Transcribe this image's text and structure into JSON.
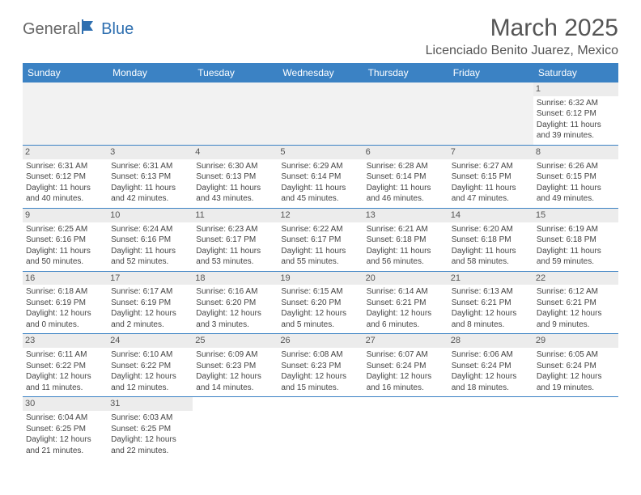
{
  "logo": {
    "text1": "General",
    "text2": "Blue"
  },
  "title": "March 2025",
  "location": "Licenciado Benito Juarez, Mexico",
  "columns": [
    "Sunday",
    "Monday",
    "Tuesday",
    "Wednesday",
    "Thursday",
    "Friday",
    "Saturday"
  ],
  "colors": {
    "header_bg": "#3b82c4",
    "header_text": "#ffffff",
    "daynum_bg": "#ececec",
    "border": "#3b82c4"
  },
  "weeks": [
    [
      null,
      null,
      null,
      null,
      null,
      null,
      {
        "n": "1",
        "sr": "6:32 AM",
        "ss": "6:12 PM",
        "dl": "11 hours and 39 minutes."
      }
    ],
    [
      {
        "n": "2",
        "sr": "6:31 AM",
        "ss": "6:12 PM",
        "dl": "11 hours and 40 minutes."
      },
      {
        "n": "3",
        "sr": "6:31 AM",
        "ss": "6:13 PM",
        "dl": "11 hours and 42 minutes."
      },
      {
        "n": "4",
        "sr": "6:30 AM",
        "ss": "6:13 PM",
        "dl": "11 hours and 43 minutes."
      },
      {
        "n": "5",
        "sr": "6:29 AM",
        "ss": "6:14 PM",
        "dl": "11 hours and 45 minutes."
      },
      {
        "n": "6",
        "sr": "6:28 AM",
        "ss": "6:14 PM",
        "dl": "11 hours and 46 minutes."
      },
      {
        "n": "7",
        "sr": "6:27 AM",
        "ss": "6:15 PM",
        "dl": "11 hours and 47 minutes."
      },
      {
        "n": "8",
        "sr": "6:26 AM",
        "ss": "6:15 PM",
        "dl": "11 hours and 49 minutes."
      }
    ],
    [
      {
        "n": "9",
        "sr": "6:25 AM",
        "ss": "6:16 PM",
        "dl": "11 hours and 50 minutes."
      },
      {
        "n": "10",
        "sr": "6:24 AM",
        "ss": "6:16 PM",
        "dl": "11 hours and 52 minutes."
      },
      {
        "n": "11",
        "sr": "6:23 AM",
        "ss": "6:17 PM",
        "dl": "11 hours and 53 minutes."
      },
      {
        "n": "12",
        "sr": "6:22 AM",
        "ss": "6:17 PM",
        "dl": "11 hours and 55 minutes."
      },
      {
        "n": "13",
        "sr": "6:21 AM",
        "ss": "6:18 PM",
        "dl": "11 hours and 56 minutes."
      },
      {
        "n": "14",
        "sr": "6:20 AM",
        "ss": "6:18 PM",
        "dl": "11 hours and 58 minutes."
      },
      {
        "n": "15",
        "sr": "6:19 AM",
        "ss": "6:18 PM",
        "dl": "11 hours and 59 minutes."
      }
    ],
    [
      {
        "n": "16",
        "sr": "6:18 AM",
        "ss": "6:19 PM",
        "dl": "12 hours and 0 minutes."
      },
      {
        "n": "17",
        "sr": "6:17 AM",
        "ss": "6:19 PM",
        "dl": "12 hours and 2 minutes."
      },
      {
        "n": "18",
        "sr": "6:16 AM",
        "ss": "6:20 PM",
        "dl": "12 hours and 3 minutes."
      },
      {
        "n": "19",
        "sr": "6:15 AM",
        "ss": "6:20 PM",
        "dl": "12 hours and 5 minutes."
      },
      {
        "n": "20",
        "sr": "6:14 AM",
        "ss": "6:21 PM",
        "dl": "12 hours and 6 minutes."
      },
      {
        "n": "21",
        "sr": "6:13 AM",
        "ss": "6:21 PM",
        "dl": "12 hours and 8 minutes."
      },
      {
        "n": "22",
        "sr": "6:12 AM",
        "ss": "6:21 PM",
        "dl": "12 hours and 9 minutes."
      }
    ],
    [
      {
        "n": "23",
        "sr": "6:11 AM",
        "ss": "6:22 PM",
        "dl": "12 hours and 11 minutes."
      },
      {
        "n": "24",
        "sr": "6:10 AM",
        "ss": "6:22 PM",
        "dl": "12 hours and 12 minutes."
      },
      {
        "n": "25",
        "sr": "6:09 AM",
        "ss": "6:23 PM",
        "dl": "12 hours and 14 minutes."
      },
      {
        "n": "26",
        "sr": "6:08 AM",
        "ss": "6:23 PM",
        "dl": "12 hours and 15 minutes."
      },
      {
        "n": "27",
        "sr": "6:07 AM",
        "ss": "6:24 PM",
        "dl": "12 hours and 16 minutes."
      },
      {
        "n": "28",
        "sr": "6:06 AM",
        "ss": "6:24 PM",
        "dl": "12 hours and 18 minutes."
      },
      {
        "n": "29",
        "sr": "6:05 AM",
        "ss": "6:24 PM",
        "dl": "12 hours and 19 minutes."
      }
    ],
    [
      {
        "n": "30",
        "sr": "6:04 AM",
        "ss": "6:25 PM",
        "dl": "12 hours and 21 minutes."
      },
      {
        "n": "31",
        "sr": "6:03 AM",
        "ss": "6:25 PM",
        "dl": "12 hours and 22 minutes."
      },
      null,
      null,
      null,
      null,
      null
    ]
  ],
  "labels": {
    "sunrise": "Sunrise:",
    "sunset": "Sunset:",
    "daylight": "Daylight:"
  }
}
